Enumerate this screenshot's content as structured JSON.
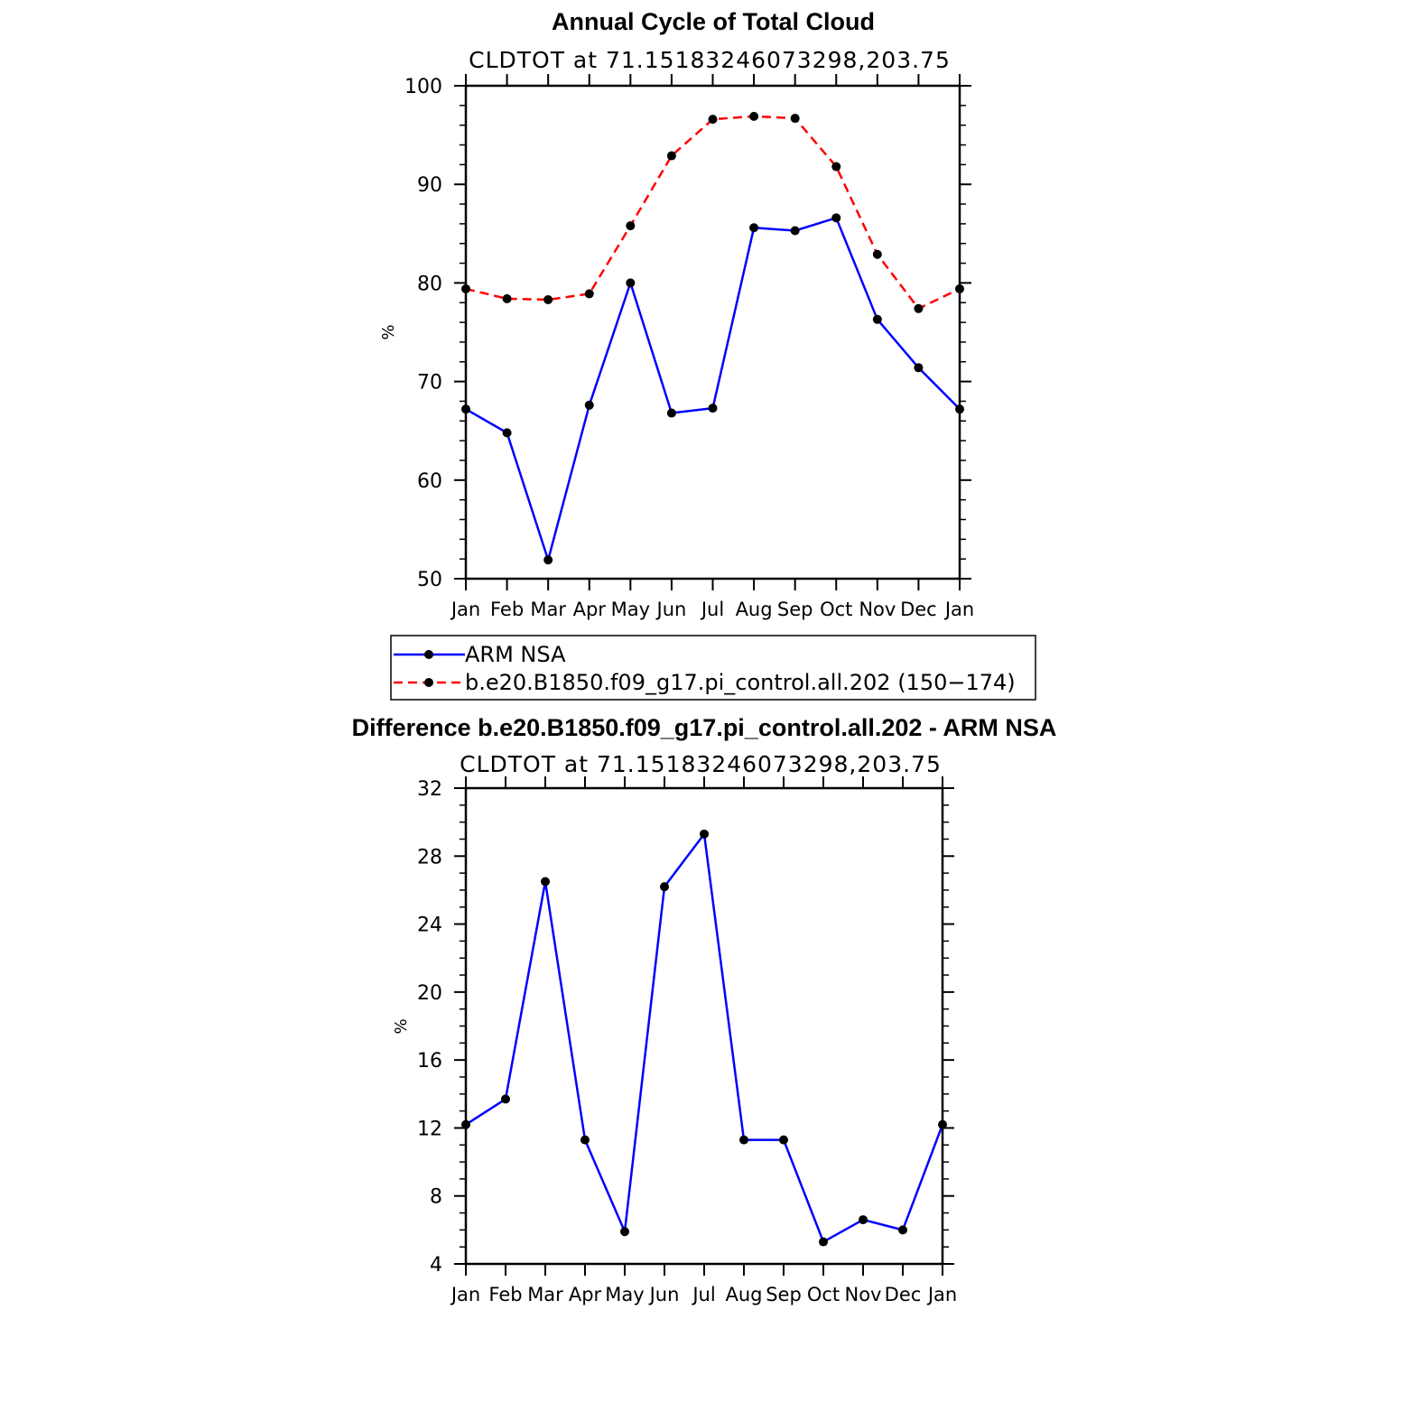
{
  "chart_data": [
    {
      "type": "line",
      "title": "Annual Cycle of Total Cloud",
      "subtitle": "CLDTOT at 71.15183246073298,203.75",
      "xlabel": "",
      "ylabel": "%",
      "categories": [
        "Jan",
        "Feb",
        "Mar",
        "Apr",
        "May",
        "Jun",
        "Jul",
        "Aug",
        "Sep",
        "Oct",
        "Nov",
        "Dec",
        "Jan"
      ],
      "ylim": [
        50,
        100
      ],
      "yticks": [
        50,
        60,
        70,
        80,
        90,
        100
      ],
      "grid": false,
      "legend_placement": "below",
      "series": [
        {
          "name": "ARM NSA",
          "color": "#0000ff",
          "line_style": "solid",
          "marker": "filled-circle",
          "values": [
            67.2,
            64.8,
            51.9,
            67.6,
            80.0,
            66.8,
            67.3,
            85.6,
            85.3,
            86.6,
            76.3,
            71.4,
            67.2
          ]
        },
        {
          "name": "b.e20.B1850.f09_g17.pi_control.all.202 (150−174)",
          "color": "#ff0000",
          "line_style": "dashed",
          "marker": "filled-circle",
          "values": [
            79.4,
            78.4,
            78.3,
            78.9,
            85.8,
            92.9,
            96.6,
            96.9,
            96.7,
            91.8,
            82.9,
            77.4,
            79.4
          ]
        }
      ]
    },
    {
      "type": "line",
      "title": "Difference b.e20.B1850.f09_g17.pi_control.all.202 - ARM NSA",
      "subtitle": "CLDTOT at 71.15183246073298,203.75",
      "xlabel": "",
      "ylabel": "%",
      "categories": [
        "Jan",
        "Feb",
        "Mar",
        "Apr",
        "May",
        "Jun",
        "Jul",
        "Aug",
        "Sep",
        "Oct",
        "Nov",
        "Dec",
        "Jan"
      ],
      "ylim": [
        4,
        32
      ],
      "yticks": [
        4,
        8,
        12,
        16,
        20,
        24,
        28,
        32
      ],
      "grid": false,
      "series": [
        {
          "color": "#0000ff",
          "line_style": "solid",
          "marker": "filled-circle",
          "values": [
            12.2,
            13.7,
            26.5,
            11.3,
            5.9,
            26.2,
            29.3,
            11.3,
            11.3,
            5.3,
            6.6,
            6.0,
            12.2
          ]
        }
      ]
    }
  ]
}
